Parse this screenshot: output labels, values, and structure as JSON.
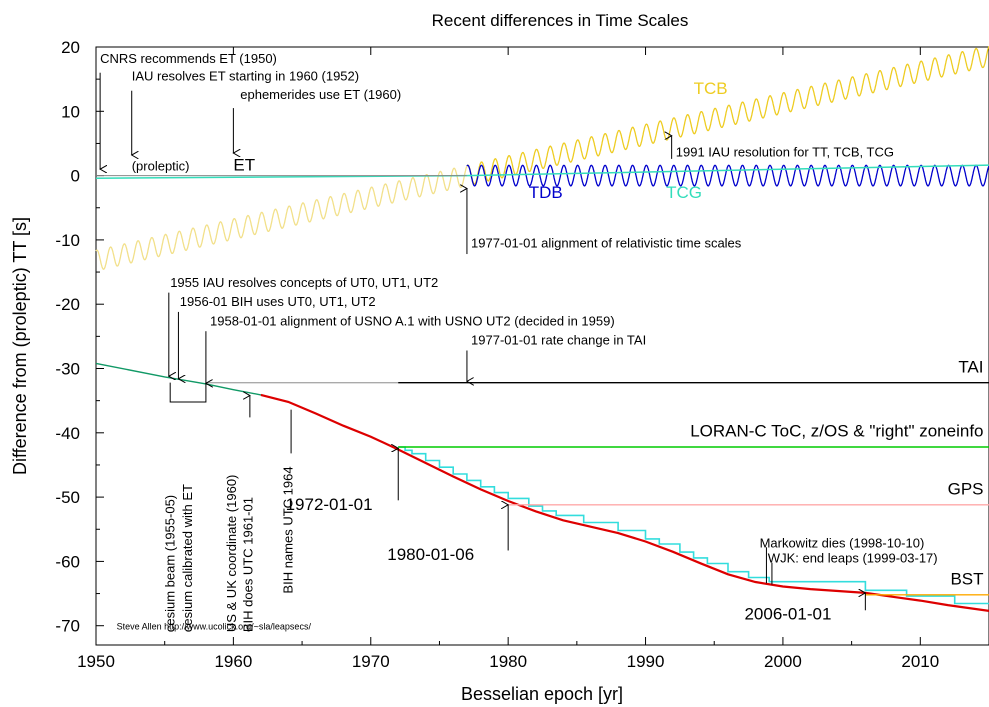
{
  "chart_data": {
    "type": "line",
    "title": "Recent differences in Time Scales",
    "xlabel": "Besselian epoch [yr]",
    "ylabel": "Difference from (proleptic) TT [s]",
    "xlim": [
      1950,
      2015
    ],
    "ylim": [
      -73,
      20
    ],
    "x_ticks": [
      1950,
      1960,
      1970,
      1980,
      1990,
      2000,
      2010
    ],
    "y_ticks": [
      20,
      10,
      0,
      -10,
      -20,
      -30,
      -40,
      -50,
      -60,
      -70
    ],
    "grid": false,
    "colors": {
      "ut_pre": "#119966",
      "ut": "#dd0000",
      "utc_steps": "#33dddd",
      "tai": "#000000",
      "tai_proleptic": "#aaaaaa",
      "loran": "#00cc00",
      "gps": "#ffaaaa",
      "bst": "#ffaa00",
      "tcb": "#eecc22",
      "tdb": "#0000cc",
      "tcg": "#33ddbb"
    },
    "series": [
      {
        "key": "ut_pre",
        "points": [
          [
            1950,
            -29.2
          ],
          [
            1955,
            -31.3
          ],
          [
            1958,
            -32.4
          ],
          [
            1960,
            -33.3
          ],
          [
            1962,
            -34.1
          ]
        ]
      },
      {
        "key": "ut",
        "points": [
          [
            1962,
            -34.1
          ],
          [
            1964,
            -35.2
          ],
          [
            1966,
            -37.0
          ],
          [
            1968,
            -38.9
          ],
          [
            1970,
            -40.6
          ],
          [
            1972,
            -42.6
          ],
          [
            1974,
            -44.7
          ],
          [
            1976,
            -46.8
          ],
          [
            1978,
            -48.8
          ],
          [
            1980,
            -50.6
          ],
          [
            1982,
            -52.2
          ],
          [
            1984,
            -53.6
          ],
          [
            1986,
            -54.6
          ],
          [
            1988,
            -55.6
          ],
          [
            1990,
            -56.9
          ],
          [
            1992,
            -58.5
          ],
          [
            1994,
            -60.3
          ],
          [
            1996,
            -62.0
          ],
          [
            1998,
            -63.2
          ],
          [
            2000,
            -63.9
          ],
          [
            2002,
            -64.3
          ],
          [
            2004,
            -64.6
          ],
          [
            2006,
            -64.9
          ],
          [
            2008,
            -65.5
          ],
          [
            2010,
            -66.1
          ],
          [
            2012,
            -66.8
          ],
          [
            2015,
            -67.7
          ]
        ]
      },
      {
        "key": "tai_proleptic",
        "points": [
          [
            1958,
            -32.2
          ],
          [
            1972,
            -32.2
          ]
        ]
      },
      {
        "key": "tai",
        "points": [
          [
            1972,
            -32.2
          ],
          [
            2015,
            -32.2
          ]
        ]
      },
      {
        "key": "loran",
        "points": [
          [
            1972,
            -42.2
          ],
          [
            2015,
            -42.2
          ]
        ]
      },
      {
        "key": "gps",
        "points": [
          [
            1980,
            -51.2
          ],
          [
            2015,
            -51.2
          ]
        ]
      },
      {
        "key": "bst",
        "points": [
          [
            2006,
            -65.2
          ],
          [
            2015,
            -65.2
          ]
        ]
      }
    ],
    "tcb": {
      "zero_epoch": 1977.0,
      "rate_s_per_yr": 0.49,
      "amplitude": 1.6
    },
    "tdb": {
      "start": 1977.0,
      "end": 2015.0,
      "amplitude": 1.6
    },
    "tcg": {
      "start": 1977.0,
      "end": 2015.0,
      "rate_s_per_yr": 0.022
    },
    "et_line": {
      "start": 1950.0,
      "end": 1977.0,
      "value": -0.4
    },
    "utc_step_leaps": [
      1972.0,
      1972.5,
      1973.0,
      1974.0,
      1975.0,
      1976.0,
      1977.0,
      1978.0,
      1979.0,
      1980.0,
      1981.5,
      1982.5,
      1983.5,
      1985.5,
      1988.0,
      1990.0,
      1991.0,
      1992.5,
      1993.5,
      1994.5,
      1996.0,
      1997.5,
      1999.0,
      2006.0,
      2009.0,
      2012.5
    ],
    "labels": [
      {
        "text": "TCB",
        "x": 1993.5,
        "y": 12.7,
        "color": "#eecc22",
        "size": 17
      },
      {
        "text": "TDB",
        "x": 1981.5,
        "y": -3.5,
        "color": "#0000cc",
        "size": 17
      },
      {
        "text": "TCG",
        "x": 1991.5,
        "y": -3.5,
        "color": "#33ddbb",
        "size": 17
      },
      {
        "text": "ET",
        "x": 1960.0,
        "y": 0.8,
        "color": "#000000",
        "size": 17
      },
      {
        "text": "(proleptic)",
        "x": 1952.6,
        "y": 0.8,
        "color": "#000000",
        "size": 13
      },
      {
        "text": "TAI",
        "x": 2014.6,
        "y": -30.6,
        "color": "#000000",
        "size": 17,
        "anchor": "end"
      },
      {
        "text": "LORAN-C ToC, z/OS & \"right\" zoneinfo",
        "x": 2014.6,
        "y": -40.6,
        "color": "#000000",
        "size": 17,
        "anchor": "end"
      },
      {
        "text": "GPS",
        "x": 2014.6,
        "y": -49.6,
        "color": "#000000",
        "size": 17,
        "anchor": "end"
      },
      {
        "text": "BST",
        "x": 2014.6,
        "y": -63.6,
        "color": "#000000",
        "size": 17,
        "anchor": "end"
      },
      {
        "text": "Steve Allen  http://www.ucolick.org/~sla/leapsecs/",
        "x": 1951.5,
        "y": -70.6,
        "color": "#000000",
        "size": 9
      }
    ],
    "annotations": [
      {
        "text": "CNRS recommends ET (1950)",
        "tx": 1950.3,
        "ty": 17.5,
        "ax": 1950.3,
        "ay1": 16.0,
        "ay2": 1.0,
        "size": 13
      },
      {
        "text": "IAU resolves ET starting in 1960 (1952)",
        "tx": 1952.6,
        "ty": 14.8,
        "ax": 1952.6,
        "ay1": 13.2,
        "ay2": 3.2,
        "size": 13
      },
      {
        "text": "ephemerides use ET (1960)",
        "tx": 1960.5,
        "ty": 11.9,
        "ax": 1960.0,
        "ay1": 10.5,
        "ay2": 3.5,
        "size": 13
      },
      {
        "text": "1991 IAU resolution for TT, TCB, TCG",
        "tx": 1992.2,
        "ty": 3.0,
        "ax": 1991.9,
        "ay1": 2.6,
        "ay2": 6.2,
        "size": 13
      },
      {
        "text": "1977-01-01 alignment of relativistic time scales",
        "tx": 1977.3,
        "ty": -11.2,
        "ax": 1977.0,
        "ay1": -12.2,
        "ay2": -2.0,
        "size": 13
      },
      {
        "text": "1955 IAU resolves concepts of UT0, UT1, UT2",
        "tx": 1955.4,
        "ty": -17.3,
        "ax": 1955.3,
        "ay1": -18.2,
        "ay2": -31.2,
        "size": 13
      },
      {
        "text": "1956-01 BIH uses UT0, UT1, UT2",
        "tx": 1956.1,
        "ty": -20.3,
        "ax": 1956.0,
        "ay1": -21.2,
        "ay2": -31.6,
        "size": 13
      },
      {
        "text": "1958-01-01 alignment of USNO A.1 with USNO UT2 (decided in 1959)",
        "tx": 1958.3,
        "ty": -23.3,
        "ax": 1958.0,
        "ay1": -24.2,
        "ay2": -32.3,
        "size": 13
      },
      {
        "text": "1977-01-01 rate change in TAI",
        "tx": 1977.3,
        "ty": -26.3,
        "ax": 1977.0,
        "ay1": -27.2,
        "ay2": -32.0,
        "size": 13
      },
      {
        "text": "1972-01-01",
        "tx": 1963.8,
        "ty": -52.0,
        "ax": 1972.0,
        "ay1": -50.5,
        "ay2": -42.4,
        "size": 17
      },
      {
        "text": "1980-01-06",
        "tx": 1971.2,
        "ty": -59.8,
        "ax": 1980.0,
        "ay1": -58.3,
        "ay2": -51.2,
        "size": 17
      },
      {
        "text": "2006-01-01",
        "tx": 1997.2,
        "ty": -69.0,
        "ax": 2006.0,
        "ay1": -67.6,
        "ay2": -64.9,
        "size": 17
      },
      {
        "text": "Markowitz dies (1998-10-10)",
        "tx": 1998.3,
        "ty": -57.8,
        "ax": 1998.8,
        "ay1": -57.8,
        "ay2": -63.4,
        "size": 13,
        "line_only": true
      },
      {
        "text": "WJK: end leaps (1999-03-17)",
        "tx": 1998.9,
        "ty": -60.2,
        "ax": 1999.2,
        "ay1": -60.2,
        "ay2": -63.6,
        "size": 13,
        "line_only": true
      }
    ],
    "vertical_labels": [
      {
        "text": "cesium beam (1955-05)",
        "x": 1955.7,
        "y": -71.0
      },
      {
        "text": "cesium calibrated with ET",
        "x": 1957.0,
        "y": -71.0
      },
      {
        "text": "US & UK coordinate (1960)",
        "x": 1960.2,
        "y": -71.0
      },
      {
        "text": "BIH does UTC 1961-01",
        "x": 1961.4,
        "y": -71.0
      },
      {
        "text": "BIH names UTC 1964",
        "x": 1964.3,
        "y": -65.0
      }
    ],
    "small_marks": [
      {
        "x": 1961.2,
        "y1": -37.6,
        "y2": -34.2,
        "arrow": true
      },
      {
        "x": 1964.2,
        "y1": -43.2,
        "y2": -36.4,
        "arrow": false
      }
    ],
    "brackets": [
      {
        "x1": 1955.4,
        "x2": 1958.0,
        "y": -35.2,
        "top": -32.2
      }
    ]
  }
}
